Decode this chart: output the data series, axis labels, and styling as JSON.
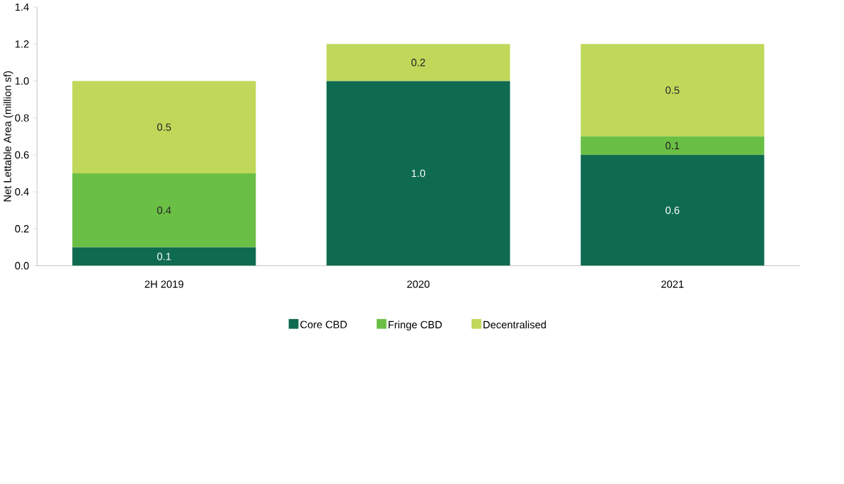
{
  "chart_data": {
    "type": "bar",
    "stacked": true,
    "ylabel": "Net Lettable Area (million sf)",
    "categories": [
      "2H 2019",
      "2020",
      "2021"
    ],
    "series": [
      {
        "name": "Core CBD",
        "color": "#0e6b4f",
        "values": [
          0.1,
          1.0,
          0.6
        ],
        "value_labels": [
          "0.1",
          "1.0",
          "0.6"
        ]
      },
      {
        "name": "Fringe CBD",
        "color": "#6abf45",
        "values": [
          0.4,
          0,
          0.1
        ],
        "value_labels": [
          "0.4",
          null,
          "0.1"
        ]
      },
      {
        "name": "Decentralised",
        "color": "#bfd85a",
        "values": [
          0.5,
          0.2,
          0.5
        ],
        "value_labels": [
          "0.5",
          "0.2",
          "0.5"
        ]
      }
    ],
    "ylim": [
      0,
      1.4
    ],
    "yticks": [
      {
        "value": 0,
        "label": "0.0"
      },
      {
        "value": 0.2,
        "label": "0.2"
      },
      {
        "value": 0.4,
        "label": "0.4"
      },
      {
        "value": 0.6,
        "label": "0.6"
      },
      {
        "value": 0.8,
        "label": "0.8"
      },
      {
        "value": 1.0,
        "label": "1.0"
      },
      {
        "value": 1.2,
        "label": "1.2"
      },
      {
        "value": 1.4,
        "label": "1.4"
      }
    ],
    "grid": false,
    "legend": "bottom"
  }
}
